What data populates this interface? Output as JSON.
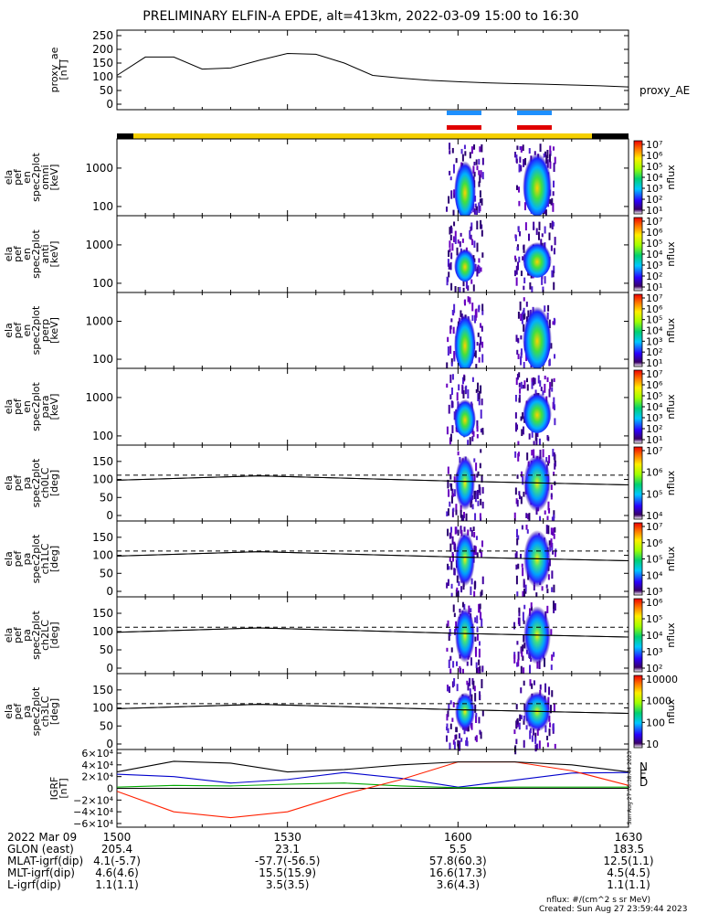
{
  "title": "PRELIMINARY ELFIN-A EPDE, alt=413km, 2022-03-09 15:00 to 16:30",
  "colors": {
    "sc_bar_day": "#f5d000",
    "sc_bar_night": "#000000",
    "ind_blue": "#1e90ff",
    "ind_red": "#e00000",
    "comp_N": "#0000cc",
    "comp_E": "#00aa00",
    "comp_D": "#ff2000",
    "comp_total": "#000000"
  },
  "panels": [
    {
      "id": "proxy-ae",
      "ylabel": [
        "proxy_ae",
        "[nT]"
      ],
      "right_label": "proxy_AE"
    },
    {
      "id": "en-omni",
      "ylabel": [
        "ela",
        "pef",
        "en",
        "spec2plot",
        "omni",
        "[keV]"
      ],
      "zlabel": "nflux"
    },
    {
      "id": "en-anti",
      "ylabel": [
        "ela",
        "pef",
        "en",
        "spec2plot",
        "anti",
        "[keV]"
      ],
      "zlabel": "nflux"
    },
    {
      "id": "en-perp",
      "ylabel": [
        "ela",
        "pef",
        "en",
        "spec2plot",
        "perp",
        "[keV]"
      ],
      "zlabel": "nflux"
    },
    {
      "id": "en-para",
      "ylabel": [
        "ela",
        "pef",
        "en",
        "spec2plot",
        "para",
        "[keV]"
      ],
      "zlabel": "nflux"
    },
    {
      "id": "pa-ch0",
      "ylabel": [
        "ela",
        "pef",
        "pa",
        "spec2plot",
        "ch0LC",
        "[deg]"
      ],
      "zlabel": "nflux"
    },
    {
      "id": "pa-ch1",
      "ylabel": [
        "ela",
        "pef",
        "pa",
        "spec2plot",
        "ch1LC",
        "[deg]"
      ],
      "zlabel": "nflux"
    },
    {
      "id": "pa-ch2",
      "ylabel": [
        "ela",
        "pef",
        "pa",
        "spec2plot",
        "ch2LC",
        "[deg]"
      ],
      "zlabel": "nflux"
    },
    {
      "id": "pa-ch3",
      "ylabel": [
        "ela",
        "pef",
        "pa",
        "spec2plot",
        "ch3LC",
        "[deg]"
      ],
      "zlabel": "nflux"
    },
    {
      "id": "igrf",
      "ylabel": [
        "IGRF",
        "[nT]"
      ],
      "side_text": "Sun Aug 27 16:38:44 2023",
      "legend": [
        "N",
        "E",
        "D"
      ]
    }
  ],
  "ticks": {
    "ae": [
      "250",
      "200",
      "150",
      "100",
      "50",
      "0"
    ],
    "energy": [
      "1000",
      "100"
    ],
    "pa": [
      "150",
      "100",
      "50",
      "0"
    ],
    "igrf": [
      "6×10⁴",
      "4×10⁴",
      "2×10⁴",
      "0",
      "−2×10⁴",
      "−4×10⁴",
      "−6×10⁴"
    ]
  },
  "colorbars": {
    "en_omni": [
      "10⁷",
      "10⁶",
      "10⁵",
      "10⁴",
      "10³",
      "10²",
      "10¹"
    ],
    "en_anti": [
      "10⁷",
      "10⁶",
      "10⁵",
      "10⁴",
      "10³",
      "10²",
      "10¹"
    ],
    "en_perp": [
      "10⁷",
      "10⁶",
      "10⁵",
      "10⁴",
      "10³",
      "10²",
      "10¹"
    ],
    "en_para": [
      "10⁷",
      "10⁶",
      "10⁵",
      "10⁴",
      "10³",
      "10²",
      "10¹"
    ],
    "pa_ch0": [
      "10⁷",
      "10⁶",
      "10⁵",
      "10⁴"
    ],
    "pa_ch1": [
      "10⁷",
      "10⁶",
      "10⁵",
      "10⁴",
      "10³"
    ],
    "pa_ch2": [
      "10⁶",
      "10⁵",
      "10⁴",
      "10³",
      "10²"
    ],
    "pa_ch3": [
      "10000",
      "1000",
      "100",
      "10"
    ]
  },
  "time_rows": [
    {
      "label": "2022 Mar 09",
      "values": [
        "1500",
        "1530",
        "1600",
        "1630"
      ]
    },
    {
      "label": "GLON (east)",
      "values": [
        "205.4",
        "23.1",
        "5.5",
        "183.5"
      ]
    },
    {
      "label": "MLAT-igrf(dip)",
      "values": [
        "4.1(-5.7)",
        "-57.7(-56.5)",
        "57.8(60.3)",
        "12.5(1.1)"
      ]
    },
    {
      "label": "MLT-igrf(dip)",
      "values": [
        "4.6(4.6)",
        "15.5(15.9)",
        "16.6(17.3)",
        "4.5(4.5)"
      ]
    },
    {
      "label": "L-igrf(dip)",
      "values": [
        "1.1(1.1)",
        "3.5(3.5)",
        "3.6(4.3)",
        "1.1(1.1)"
      ]
    }
  ],
  "footer": {
    "units": "nflux: #/(cm^2 s sr MeV)",
    "created": "Created: Sun Aug 27 23:59:44 2023"
  },
  "chart_data": [
    {
      "type": "line",
      "title": "proxy_ae",
      "ylabel": "proxy_ae [nT]",
      "ylim": [
        0,
        250
      ],
      "x_time": [
        "15:00",
        "15:05",
        "15:10",
        "15:15",
        "15:20",
        "15:25",
        "15:30",
        "15:35",
        "15:40",
        "15:45",
        "15:50",
        "15:55",
        "16:00",
        "16:05",
        "16:10",
        "16:15",
        "16:20",
        "16:25",
        "16:30"
      ],
      "values": [
        105,
        172,
        172,
        128,
        132,
        160,
        185,
        182,
        150,
        105,
        95,
        87,
        82,
        78,
        75,
        73,
        70,
        67,
        63
      ]
    },
    {
      "type": "line",
      "title": "IGRF",
      "ylabel": "IGRF [nT]",
      "ylim": [
        -60000,
        60000
      ],
      "x_time": [
        "15:00",
        "15:10",
        "15:20",
        "15:30",
        "15:40",
        "15:50",
        "16:00",
        "16:10",
        "16:20",
        "16:30"
      ],
      "series": [
        {
          "name": "N",
          "values": [
            24000,
            20000,
            9000,
            15000,
            27000,
            17000,
            2000,
            14000,
            26000,
            27000
          ]
        },
        {
          "name": "E",
          "values": [
            2000,
            5000,
            4000,
            7000,
            9000,
            4000,
            1000,
            2000,
            2000,
            2000
          ]
        },
        {
          "name": "D",
          "values": [
            -5000,
            -40000,
            -50000,
            -40000,
            -10000,
            15000,
            45000,
            45000,
            30000,
            5000
          ]
        },
        {
          "name": "",
          "values": [
            28000,
            46000,
            43000,
            28000,
            32000,
            40000,
            45000,
            45000,
            40000,
            28000
          ]
        }
      ]
    }
  ]
}
